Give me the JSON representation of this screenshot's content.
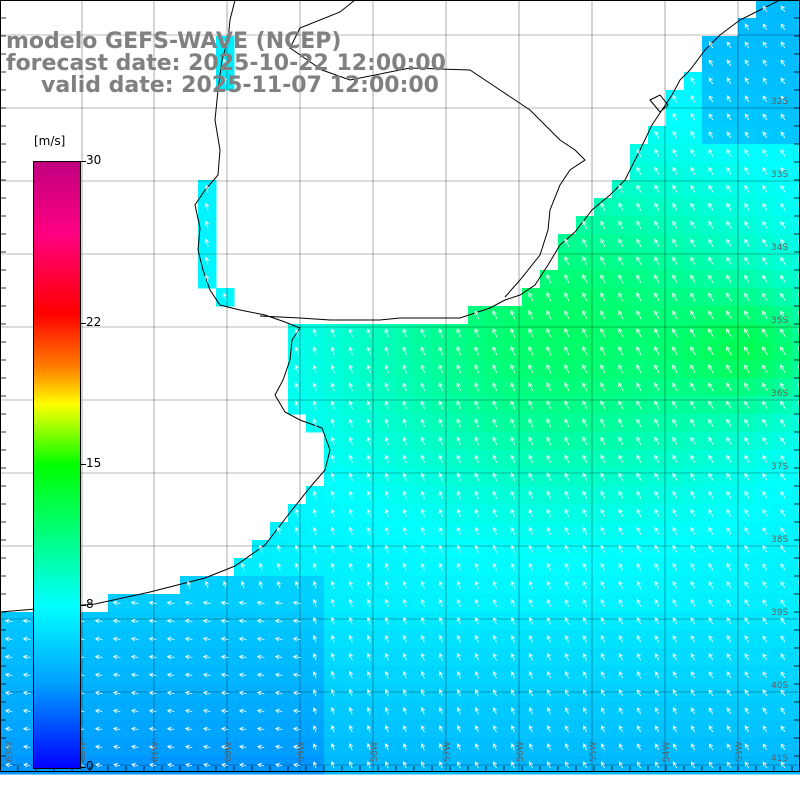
{
  "header": {
    "line1": "modelo GEFS-WAVE (NCEP)",
    "line2": "forecast date: 2025-10-22 12:00:00",
    "line3": "valid date: 2025-11-07 12:00:00"
  },
  "colorbar": {
    "unit": "[m/s]",
    "min": 0,
    "max": 30,
    "ticks": [
      {
        "value": 0,
        "label": "0"
      },
      {
        "value": 8,
        "label": "8"
      },
      {
        "value": 15,
        "label": "15"
      },
      {
        "value": 22,
        "label": "22"
      },
      {
        "value": 30,
        "label": "30"
      }
    ],
    "colors": [
      "#0000ff",
      "#00a0ff",
      "#00ffff",
      "#00ff00",
      "#ffff00",
      "#ff8000",
      "#ff0000",
      "#ff0080",
      "#c00080"
    ]
  },
  "map": {
    "lat_labels": [
      "32S",
      "33S",
      "34S",
      "35S",
      "36S",
      "37S",
      "38S",
      "39S",
      "40S",
      "41S"
    ],
    "lon_labels": [
      "63W",
      "62W",
      "61W",
      "60W",
      "59W",
      "58W",
      "57W",
      "56W",
      "55W",
      "54W",
      "53W"
    ],
    "grid_color": "#000000",
    "coast_color": "#000000",
    "arrow_color": "#ffffff",
    "land_color": "#ffffff"
  }
}
